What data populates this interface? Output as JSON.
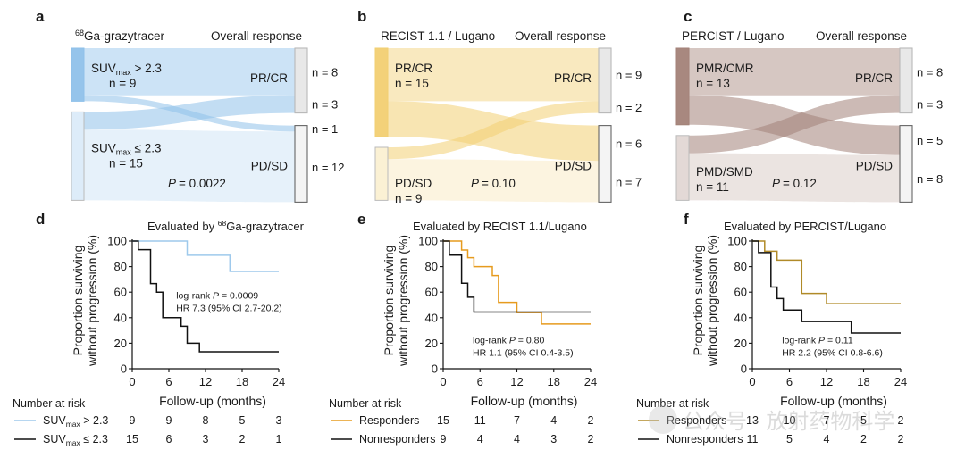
{
  "panel_labels": [
    "a",
    "b",
    "c",
    "d",
    "e",
    "f"
  ],
  "sankey_panels": [
    {
      "color": "#8fc1ea",
      "left_title_sup": "68",
      "left_title": "Ga-grazytracer",
      "right_title": "Overall response",
      "left_nodes": [
        {
          "base": "SUV",
          "sub": "max",
          "rest": " > 2.3",
          "n": "n = 9"
        },
        {
          "base": "SUV",
          "sub": "max",
          "rest": " ≤ 2.3",
          "n": "n = 15"
        }
      ],
      "right_labels": [
        "PR/CR",
        "PD/SD"
      ],
      "flow_counts": [
        "n = 8",
        "n = 3",
        "n = 1",
        "n = 12"
      ],
      "p_value": "= 0.0022"
    },
    {
      "color": "#f2cf72",
      "left_title_sup": "",
      "left_title": "RECIST 1.1 / Lugano",
      "right_title": "Overall response",
      "left_nodes": [
        {
          "base": "PR/CR",
          "sub": "",
          "rest": "",
          "n": "n = 15"
        },
        {
          "base": "PD/SD",
          "sub": "",
          "rest": "",
          "n": "n = 9"
        }
      ],
      "right_labels": [
        "PR/CR",
        "PD/SD"
      ],
      "flow_counts": [
        "n = 9",
        "n = 2",
        "n = 6",
        "n = 7"
      ],
      "p_value": "= 0.10"
    },
    {
      "color": "#a38278",
      "left_title_sup": "",
      "left_title": "PERCIST / Lugano",
      "right_title": "Overall response",
      "left_nodes": [
        {
          "base": "PMR/CMR",
          "sub": "",
          "rest": "",
          "n": "n = 13"
        },
        {
          "base": "PMD/SMD",
          "sub": "",
          "rest": "",
          "n": "n = 11"
        }
      ],
      "right_labels": [
        "PR/CR",
        "PD/SD"
      ],
      "flow_counts": [
        "n = 8",
        "n = 3",
        "n = 5",
        "n = 8"
      ],
      "p_value": "= 0.12"
    }
  ],
  "chart_data": [
    {
      "type": "line",
      "title_sup": "68",
      "title": "Evaluated by ",
      "title_tail": "Ga-grazytracer",
      "xlabel": "Follow-up (months)",
      "ylabel": [
        "Proportion surviving",
        "without progression (%)"
      ],
      "xlim": [
        0,
        24
      ],
      "ylim": [
        0,
        100
      ],
      "xticks": [
        0,
        6,
        12,
        18,
        24
      ],
      "yticks": [
        0,
        20,
        40,
        60,
        80,
        100
      ],
      "series": [
        {
          "color": "#9ec9ec",
          "steps": [
            [
              0,
              100
            ],
            [
              9,
              100
            ],
            [
              9,
              88.9
            ],
            [
              16,
              88.9
            ],
            [
              16,
              76.2
            ],
            [
              24,
              76.2
            ]
          ]
        },
        {
          "color": "#111111",
          "steps": [
            [
              0,
              100
            ],
            [
              1,
              100
            ],
            [
              1,
              93.3
            ],
            [
              3,
              93.3
            ],
            [
              3,
              66.7
            ],
            [
              4,
              66.7
            ],
            [
              4,
              60
            ],
            [
              5,
              60
            ],
            [
              5,
              40
            ],
            [
              8,
              40
            ],
            [
              8,
              33.3
            ],
            [
              9,
              33.3
            ],
            [
              9,
              20
            ],
            [
              11,
              20
            ],
            [
              11,
              13.3
            ],
            [
              24,
              13.3
            ]
          ]
        }
      ],
      "stats": [
        "log-rank ",
        "P",
        " = 0.0009",
        "HR 7.3 (95% CI 2.7-20.2)"
      ],
      "risk_title": "Number at risk",
      "risk_rows": [
        {
          "color": "#9ec9ec",
          "base": "SUV",
          "sub": "max",
          "rest": " >  2.3",
          "values": [
            "9",
            "9",
            "8",
            "5",
            "3"
          ]
        },
        {
          "color": "#111111",
          "base": "SUV",
          "sub": "max",
          "rest": " ≤  2.3",
          "values": [
            "15",
            "6",
            "3",
            "2",
            "1"
          ]
        }
      ]
    },
    {
      "type": "line",
      "title_sup": "",
      "title": "Evaluated by RECIST 1.1/Lugano",
      "title_tail": "",
      "xlabel": "Follow-up (months)",
      "ylabel": [
        "Proportion surviving",
        "without progression (%)"
      ],
      "xlim": [
        0,
        24
      ],
      "ylim": [
        0,
        100
      ],
      "xticks": [
        0,
        6,
        12,
        18,
        24
      ],
      "yticks": [
        0,
        20,
        40,
        60,
        80,
        100
      ],
      "series": [
        {
          "color": "#e69b1e",
          "steps": [
            [
              0,
              100
            ],
            [
              3,
              100
            ],
            [
              3,
              93
            ],
            [
              4,
              93
            ],
            [
              4,
              87
            ],
            [
              5,
              87
            ],
            [
              5,
              80
            ],
            [
              8,
              80
            ],
            [
              8,
              73
            ],
            [
              9,
              73
            ],
            [
              9,
              52
            ],
            [
              12,
              52
            ],
            [
              12,
              44
            ],
            [
              16,
              44
            ],
            [
              16,
              35
            ],
            [
              24,
              35
            ]
          ]
        },
        {
          "color": "#111111",
          "steps": [
            [
              0,
              100
            ],
            [
              1,
              100
            ],
            [
              1,
              89
            ],
            [
              3,
              89
            ],
            [
              3,
              67
            ],
            [
              4,
              67
            ],
            [
              4,
              56
            ],
            [
              5,
              56
            ],
            [
              5,
              44.4
            ],
            [
              24,
              44.4
            ]
          ]
        }
      ],
      "stats": [
        "log-rank ",
        "P",
        " = 0.80",
        "HR 1.1 (95% CI 0.4-3.5)"
      ],
      "risk_title": "Number at risk",
      "risk_rows": [
        {
          "color": "#e69b1e",
          "base": "Responders",
          "sub": "",
          "rest": "",
          "values": [
            "15",
            "11",
            "7",
            "4",
            "2"
          ]
        },
        {
          "color": "#111111",
          "base": "Nonresponders",
          "sub": "",
          "rest": "",
          "values": [
            "9",
            "4",
            "4",
            "3",
            "2"
          ]
        }
      ]
    },
    {
      "type": "line",
      "title_sup": "",
      "title": "Evaluated by PERCIST/Lugano",
      "title_tail": "",
      "xlabel": "Follow-up (months)",
      "ylabel": [
        "Proportion surviving",
        "without progression (%)"
      ],
      "xlim": [
        0,
        24
      ],
      "ylim": [
        0,
        100
      ],
      "xticks": [
        0,
        6,
        12,
        18,
        24
      ],
      "yticks": [
        0,
        20,
        40,
        60,
        80,
        100
      ],
      "series": [
        {
          "color": "#b08a28",
          "steps": [
            [
              0,
              100
            ],
            [
              2,
              100
            ],
            [
              2,
              92
            ],
            [
              4,
              92
            ],
            [
              4,
              85
            ],
            [
              8,
              85
            ],
            [
              8,
              59
            ],
            [
              12,
              59
            ],
            [
              12,
              51
            ],
            [
              24,
              51
            ]
          ]
        },
        {
          "color": "#111111",
          "steps": [
            [
              0,
              100
            ],
            [
              1,
              100
            ],
            [
              1,
              91
            ],
            [
              3,
              91
            ],
            [
              3,
              64
            ],
            [
              4,
              64
            ],
            [
              4,
              55
            ],
            [
              5,
              55
            ],
            [
              5,
              46
            ],
            [
              8,
              46
            ],
            [
              8,
              37
            ],
            [
              16,
              37
            ],
            [
              16,
              28
            ],
            [
              24,
              28
            ]
          ]
        }
      ],
      "stats": [
        "log-rank ",
        "P",
        " = 0.11",
        "HR 2.2 (95% CI 0.8-6.6)"
      ],
      "risk_title": "Number at risk",
      "risk_rows": [
        {
          "color": "#b08a28",
          "base": "Responders",
          "sub": "",
          "rest": "",
          "values": [
            "13",
            "10",
            "7",
            "5",
            "2"
          ]
        },
        {
          "color": "#111111",
          "base": "Nonresponders",
          "sub": "",
          "rest": "",
          "values": [
            "11",
            "5",
            "4",
            "2",
            "2"
          ]
        }
      ]
    }
  ],
  "watermark": "公众号 · 放射药物科学"
}
